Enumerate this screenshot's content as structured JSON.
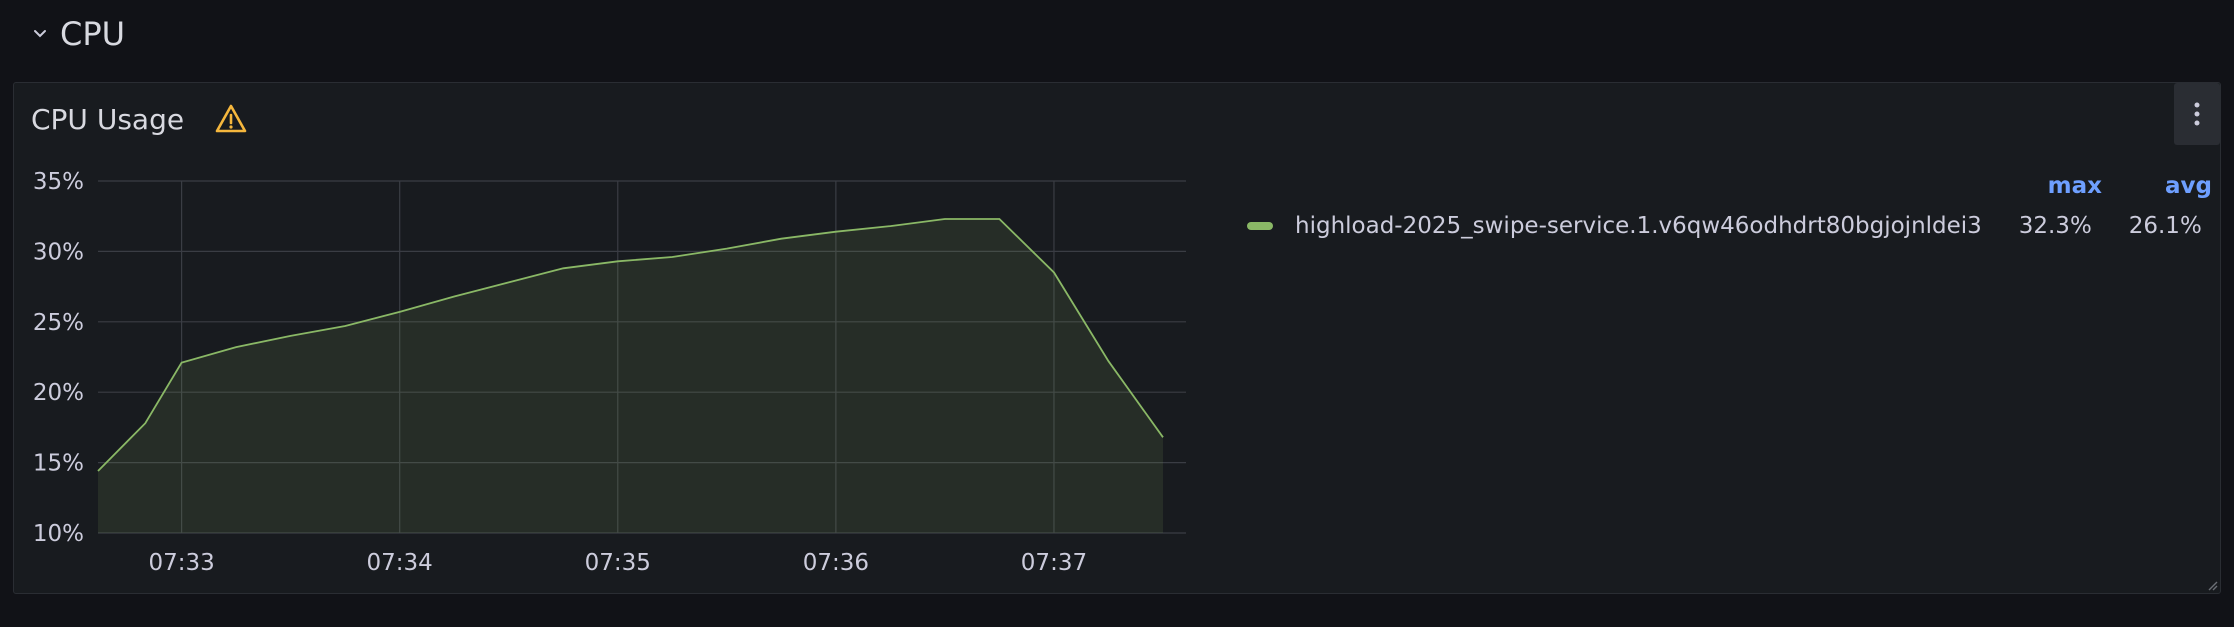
{
  "row": {
    "title": "CPU"
  },
  "panel": {
    "title": "CPU Usage",
    "warning_icon": "warning-triangle-icon",
    "menu_icon": "kebab-menu-icon"
  },
  "colors": {
    "series": "#8ab866",
    "accent_header": "#6e9fff",
    "warning": "#f5b73d"
  },
  "legend": {
    "columns": [
      "max",
      "avg"
    ],
    "items": [
      {
        "name": "highload-2025_swipe-service.1.v6qw46odhdrt80bgjojnldei3",
        "max": "32.3%",
        "avg": "26.1%"
      }
    ]
  },
  "chart_data": {
    "type": "area",
    "x_ticks": [
      "07:33",
      "07:34",
      "07:35",
      "07:36",
      "07:37"
    ],
    "y_ticks": [
      "35%",
      "30%",
      "25%",
      "20%",
      "15%",
      "10%"
    ],
    "ylim": [
      10,
      35
    ],
    "xlim": [
      "07:32:37",
      "07:37:30"
    ],
    "series": [
      {
        "x": [
          "07:32:37",
          "07:32:50",
          "07:33:00",
          "07:33:15",
          "07:33:30",
          "07:33:45",
          "07:34:00",
          "07:34:15",
          "07:34:30",
          "07:34:45",
          "07:35:00",
          "07:35:15",
          "07:35:30",
          "07:35:45",
          "07:36:00",
          "07:36:15",
          "07:36:30",
          "07:36:45",
          "07:37:00",
          "07:37:15",
          "07:37:30"
        ],
        "values": [
          14.4,
          17.8,
          22.1,
          23.2,
          24.0,
          24.7,
          25.7,
          26.8,
          27.8,
          28.8,
          29.3,
          29.6,
          30.2,
          30.9,
          31.4,
          31.8,
          32.3,
          32.3,
          28.5,
          22.2,
          16.8
        ]
      }
    ],
    "grid": true,
    "legend_position": "right"
  }
}
